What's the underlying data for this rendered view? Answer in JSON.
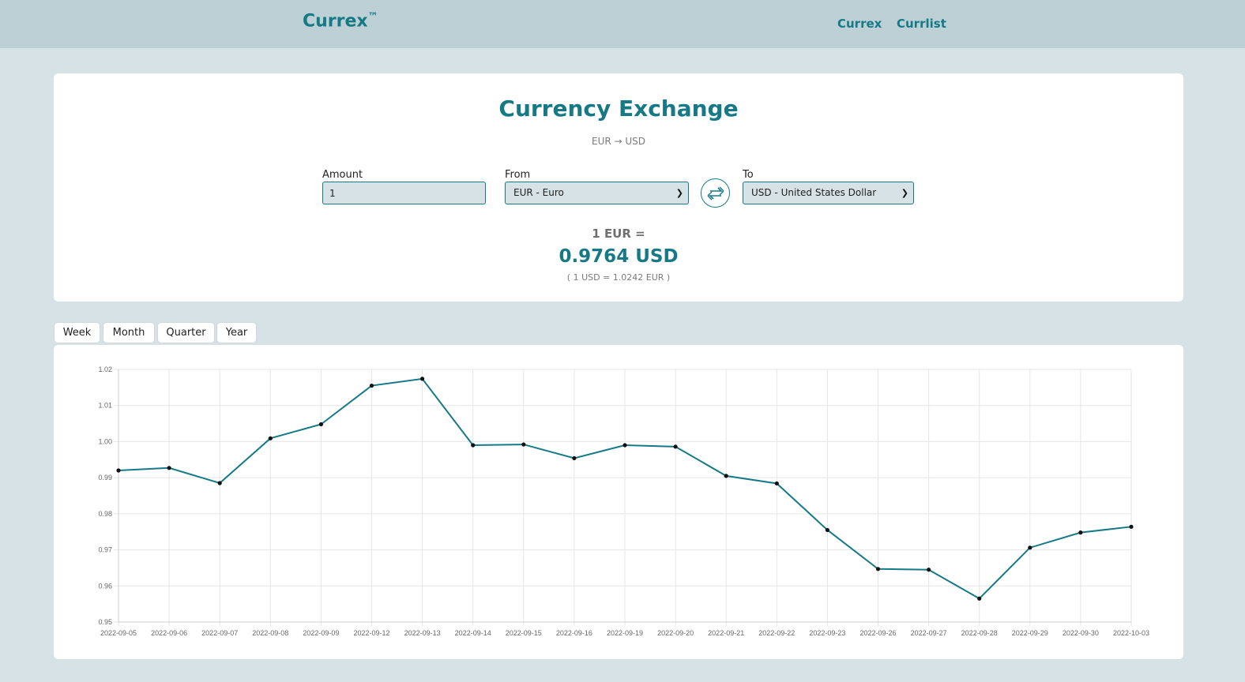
{
  "navbar": {
    "brand": "Currex",
    "brand_mark": "™",
    "links": [
      "Currex",
      "Currlist"
    ]
  },
  "exchange": {
    "title": "Currency Exchange",
    "pair": "EUR → USD",
    "amount_label": "Amount",
    "amount_value": "1",
    "from_label": "From",
    "from_value": "EUR - Euro",
    "to_label": "To",
    "to_value": "USD - United States Dollar",
    "swap_icon": "swap-arrows-icon",
    "result_from": "1 EUR =",
    "result_to": "0.9764 USD",
    "result_inverse": "( 1 USD = 1.0242 EUR )"
  },
  "tabs": [
    "Week",
    "Month",
    "Quarter",
    "Year"
  ],
  "colors": {
    "accent": "#157a86",
    "background": "#d6e2e6",
    "navbar": "#bdd0d6"
  },
  "chart_data": {
    "type": "line",
    "x": [
      "2022-09-05",
      "2022-09-06",
      "2022-09-07",
      "2022-09-08",
      "2022-09-09",
      "2022-09-12",
      "2022-09-13",
      "2022-09-14",
      "2022-09-15",
      "2022-09-16",
      "2022-09-19",
      "2022-09-20",
      "2022-09-21",
      "2022-09-22",
      "2022-09-23",
      "2022-09-26",
      "2022-09-27",
      "2022-09-28",
      "2022-09-29",
      "2022-09-30",
      "2022-10-03"
    ],
    "series": [
      {
        "values": [
          0.992,
          0.9927,
          0.9885,
          1.0009,
          1.0048,
          1.0155,
          1.0174,
          0.999,
          0.9992,
          0.9954,
          0.999,
          0.9986,
          0.9905,
          0.9884,
          0.9755,
          0.9647,
          0.9645,
          0.9565,
          0.9706,
          0.9748,
          0.9764
        ]
      }
    ],
    "yticks": [
      "1.02",
      "1.01",
      "1.00",
      "0.99",
      "0.98",
      "0.97",
      "0.96",
      "0.95"
    ],
    "ylim": [
      0.95,
      1.02
    ],
    "grid": true,
    "line_color": "#157a86"
  }
}
